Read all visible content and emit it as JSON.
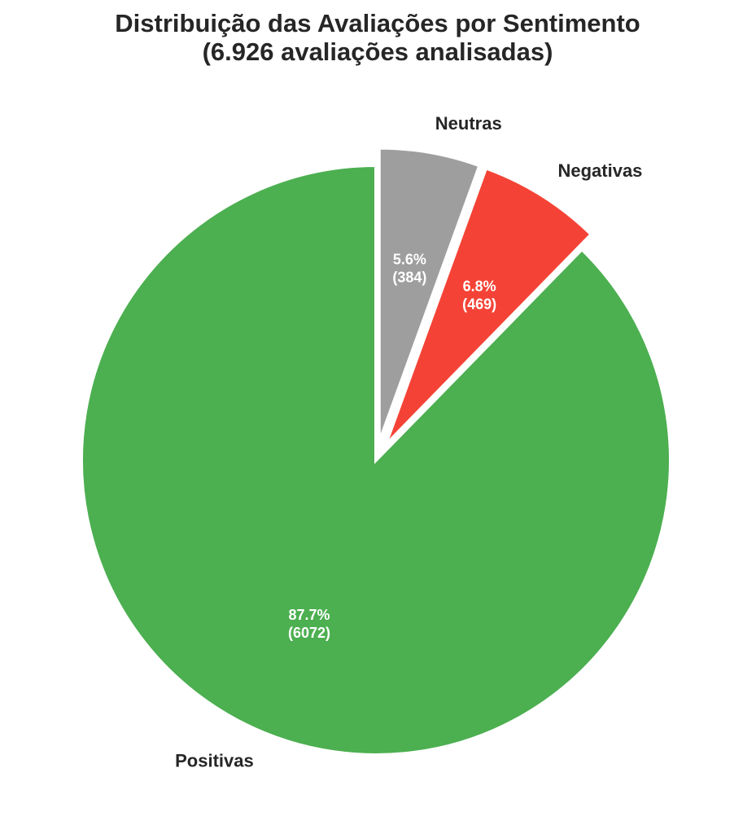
{
  "chart_data": {
    "type": "pie",
    "title_lines": [
      "Distribuição das Avaliações por Sentimento",
      "(6.926 avaliações analisadas)"
    ],
    "start_angle": "12 o'clock",
    "direction": "clockwise",
    "slices": [
      {
        "key": "neutras",
        "label": "Neutras",
        "value": 384,
        "percent_text": "5.6%",
        "count_text": "(384)",
        "color": "#9e9e9e",
        "exploded": true
      },
      {
        "key": "negativas",
        "label": "Negativas",
        "value": 469,
        "percent_text": "6.8%",
        "count_text": "(469)",
        "color": "#f44336",
        "exploded": true
      },
      {
        "key": "positivas",
        "label": "Positivas",
        "value": 6072,
        "percent_text": "87.7%",
        "count_text": "(6072)",
        "color": "#4caf50",
        "exploded": false
      }
    ]
  }
}
